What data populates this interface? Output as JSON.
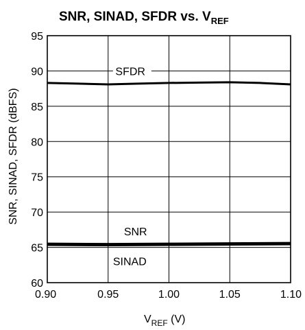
{
  "chart_data": {
    "type": "line",
    "title_main": "SNR, SINAD, SFDR vs. V",
    "title_sub": "REF",
    "xlabel_main": "V",
    "xlabel_sub": "REF",
    "xlabel_unit": " (V)",
    "ylabel": "SNR, SINAD, SFDR (dBFS)",
    "xlim": [
      0.9,
      1.1
    ],
    "ylim": [
      60,
      95
    ],
    "xticks": [
      "0.90",
      "0.95",
      "1.00",
      "1.05",
      "1.10"
    ],
    "yticks": [
      "60",
      "65",
      "70",
      "75",
      "80",
      "85",
      "90",
      "95"
    ],
    "grid": true,
    "series": [
      {
        "name": "SFDR",
        "x": [
          0.9,
          0.925,
          0.95,
          0.975,
          1.0,
          1.025,
          1.05,
          1.075,
          1.1
        ],
        "y": [
          88.3,
          88.2,
          88.1,
          88.2,
          88.3,
          88.35,
          88.4,
          88.3,
          88.1
        ],
        "color": "#000000"
      },
      {
        "name": "SNR",
        "x": [
          0.9,
          0.95,
          1.0,
          1.05,
          1.1
        ],
        "y": [
          65.5,
          65.45,
          65.5,
          65.55,
          65.6
        ],
        "color": "#000000"
      },
      {
        "name": "SINAD",
        "x": [
          0.9,
          0.95,
          1.0,
          1.05,
          1.1
        ],
        "y": [
          65.3,
          65.25,
          65.3,
          65.35,
          65.4
        ],
        "color": "#000000"
      }
    ],
    "annotations": [
      "SFDR",
      "SNR",
      "SINAD"
    ]
  }
}
